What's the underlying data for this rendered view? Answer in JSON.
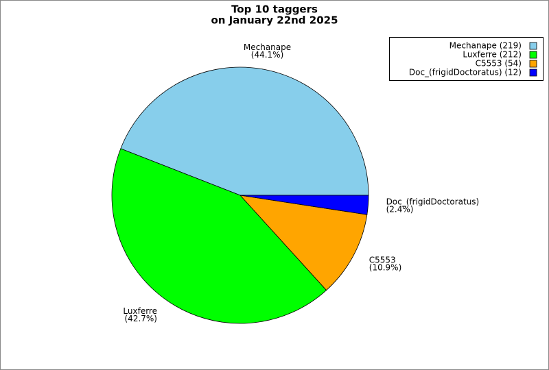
{
  "chart_data": {
    "type": "pie",
    "title": [
      "Top 10 taggers",
      "on January 22nd 2025"
    ],
    "categories": [
      "Mechanape",
      "Luxferre",
      "C5553",
      "Doc_(frigidDoctoratus)"
    ],
    "values": [
      219,
      212,
      54,
      12
    ],
    "percent_labels": [
      "(44.1%)",
      "(42.7%)",
      "(10.9%)",
      "(2.4%)"
    ],
    "legend_labels": [
      "Mechanape (219)",
      "Luxferre (212)",
      "C5553 (54)",
      "Doc_(frigidDoctoratus) (12)"
    ],
    "colors": [
      "#87ceeb",
      "#00ff00",
      "#ffa500",
      "#0000ff"
    ],
    "legend": "upper right"
  }
}
